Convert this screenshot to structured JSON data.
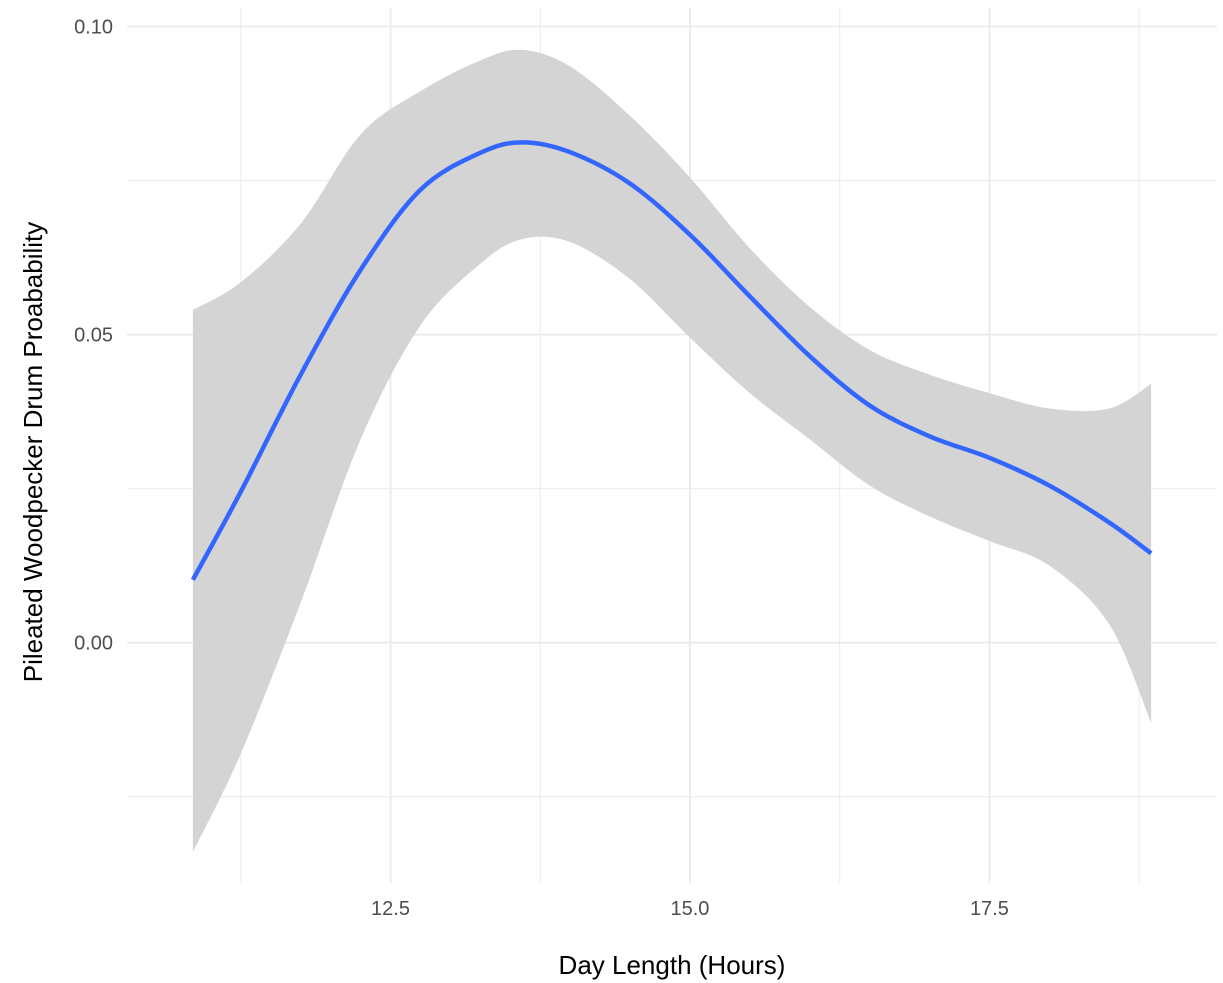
{
  "chart_data": {
    "type": "line",
    "title": "",
    "xlabel": "Day Length (Hours)",
    "ylabel": "Pileated Woodpecker Drum Proabability",
    "xlim": [
      10.3,
      19.4
    ],
    "ylim": [
      -0.039,
      0.103
    ],
    "x_ticks": [
      12.5,
      15.0,
      17.5
    ],
    "x_tick_labels": [
      "12.5",
      "15.0",
      "17.5"
    ],
    "y_ticks": [
      0.0,
      0.05,
      0.1
    ],
    "y_tick_labels": [
      "0.00",
      "0.05",
      "0.10"
    ],
    "grid": true,
    "colors": {
      "line": "#3366ff",
      "ribbon": "#d4d4d4",
      "grid": "#ebebeb"
    },
    "series": [
      {
        "x": [
          10.85,
          11.25,
          11.75,
          12.25,
          12.75,
          13.25,
          13.6,
          14.0,
          14.5,
          15.0,
          15.5,
          16.0,
          16.5,
          17.0,
          17.5,
          18.0,
          18.5,
          18.85
        ],
        "y": [
          0.0102,
          0.0245,
          0.0435,
          0.0605,
          0.0735,
          0.0795,
          0.0812,
          0.0796,
          0.0745,
          0.0662,
          0.0562,
          0.0465,
          0.0385,
          0.0335,
          0.03,
          0.0255,
          0.0195,
          0.0145
        ],
        "lower": [
          -0.034,
          -0.018,
          0.0065,
          0.033,
          0.0515,
          0.0615,
          0.0655,
          0.065,
          0.059,
          0.0495,
          0.0405,
          0.033,
          0.0255,
          0.0205,
          0.0165,
          0.0125,
          0.003,
          -0.013
        ],
        "upper": [
          0.054,
          0.0585,
          0.068,
          0.0825,
          0.0895,
          0.0945,
          0.0962,
          0.0935,
          0.0855,
          0.0755,
          0.064,
          0.0545,
          0.0475,
          0.0435,
          0.0405,
          0.038,
          0.038,
          0.042
        ]
      }
    ]
  }
}
